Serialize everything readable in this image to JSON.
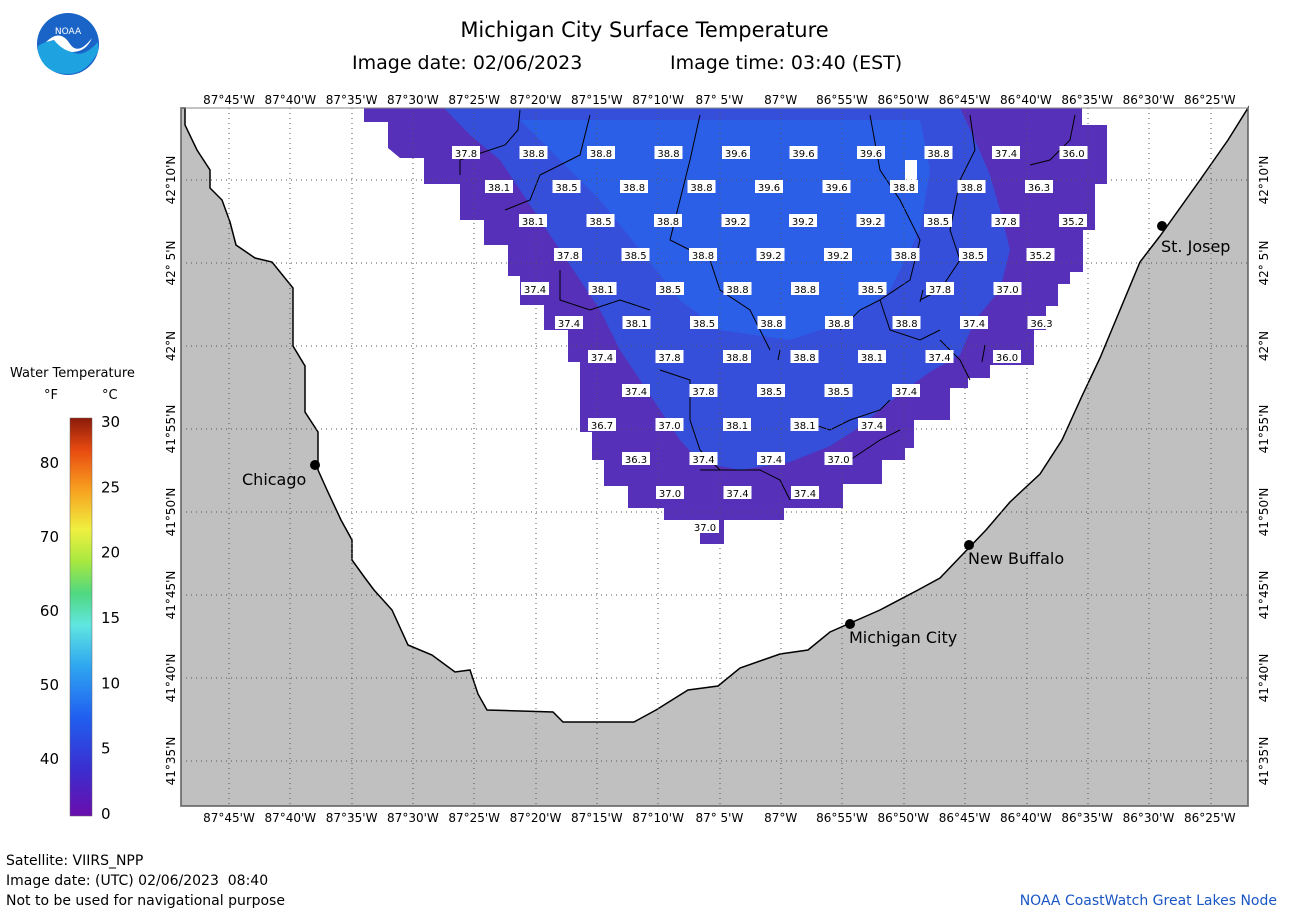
{
  "header": {
    "title": "Michigan City Surface Temperature",
    "image_date": "Image date: 02/06/2023",
    "image_time": "Image time: 03:40 (EST)"
  },
  "logo": {
    "text": "NOAA",
    "icon": "noaa-logo-icon"
  },
  "colors": {
    "land": "#c0c0c0",
    "water_dark": "#5a2fb8",
    "water_light": "#2f5ee6",
    "grid": "#555555"
  },
  "axes": {
    "lon_labels": [
      "87°45'W",
      "87°40'W",
      "87°35'W",
      "87°30'W",
      "87°25'W",
      "87°20'W",
      "87°15'W",
      "87°10'W",
      "87° 5'W",
      "87°W",
      "86°55'W",
      "86°50'W",
      "86°45'W",
      "86°40'W",
      "86°35'W",
      "86°30'W",
      "86°25'W"
    ],
    "lat_labels": [
      "42°10'N",
      "42° 5'N",
      "42°N",
      "41°55'N",
      "41°50'N",
      "41°45'N",
      "41°40'N",
      "41°35'N"
    ]
  },
  "cities": [
    {
      "name": "Chicago"
    },
    {
      "name": "St. Josep"
    },
    {
      "name": "New Buffalo"
    },
    {
      "name": "Michigan City"
    }
  ],
  "temperature_labels": [
    [
      "37.8",
      "38.8",
      "38.8",
      "38.8",
      "39.6",
      "39.6",
      "39.6",
      "38.8",
      "37.4",
      "36.0"
    ],
    [
      "38.1",
      "38.5",
      "38.8",
      "38.8",
      "39.6",
      "39.6",
      "38.8",
      "38.8",
      "36.3"
    ],
    [
      "38.1",
      "38.5",
      "38.8",
      "39.2",
      "39.2",
      "39.2",
      "38.5",
      "37.8",
      "35.2"
    ],
    [
      "37.8",
      "38.5",
      "38.8",
      "39.2",
      "39.2",
      "38.8",
      "38.5",
      "35.2"
    ],
    [
      "37.4",
      "38.1",
      "38.5",
      "38.8",
      "38.8",
      "38.5",
      "37.8",
      "37.0"
    ],
    [
      "37.4",
      "38.1",
      "38.5",
      "38.8",
      "38.8",
      "38.8",
      "37.4",
      "36.3"
    ],
    [
      "37.4",
      "37.8",
      "38.8",
      "38.8",
      "38.1",
      "37.4",
      "36.0"
    ],
    [
      "37.4",
      "37.8",
      "38.5",
      "38.5",
      "37.4"
    ],
    [
      "36.7",
      "37.0",
      "38.1",
      "38.1",
      "37.4"
    ],
    [
      "36.3",
      "37.4",
      "37.4",
      "37.0"
    ],
    [
      "37.0",
      "37.4",
      "37.4"
    ],
    [
      "37.0"
    ]
  ],
  "legend": {
    "title": "Water Temperature",
    "unit_f": "°F",
    "unit_c": "°C",
    "f_ticks": [
      "80",
      "70",
      "60",
      "50",
      "40"
    ],
    "c_ticks": [
      "30",
      "25",
      "20",
      "15",
      "10",
      "5",
      "0"
    ]
  },
  "footer": {
    "satellite": "Satellite: VIIRS_NPP",
    "utc_date": "Image date: (UTC) 02/06/2023  08:40",
    "warning": "Not to be used for navigational purpose",
    "node": "NOAA CoastWatch Great Lakes Node"
  }
}
